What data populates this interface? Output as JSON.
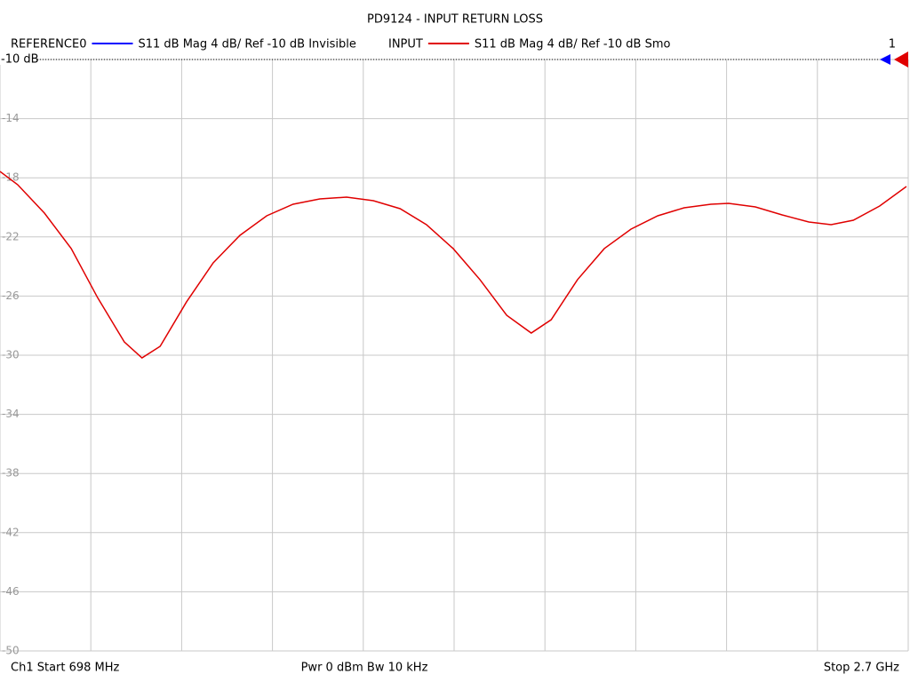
{
  "chart_data": {
    "type": "line",
    "title": "PD9124 - INPUT RETURN LOSS",
    "series": [
      {
        "name": "REFERENCE0",
        "color": "#0000ff",
        "info": "S11  dB Mag  4 dB/ Ref -10 dB  Invisible"
      },
      {
        "name": "INPUT",
        "color": "#e00000",
        "info": "S11  dB Mag  4 dB/ Ref -10 dB  Smo",
        "values": [
          -17.57,
          -18.47,
          -20.39,
          -22.79,
          -26.1,
          -29.1,
          -30.18,
          -29.4,
          -26.4,
          -23.75,
          -21.89,
          -20.57,
          -19.79,
          -19.43,
          -19.31,
          -19.55,
          -20.09,
          -21.17,
          -22.79,
          -24.89,
          -27.3,
          -28.5,
          -27.6,
          -24.89,
          -22.79,
          -21.47,
          -20.57,
          -20.03,
          -19.79,
          -19.73,
          -19.97,
          -20.51,
          -20.99,
          -21.17,
          -20.87,
          -19.91,
          -18.59
        ]
      }
    ],
    "x": [
      698,
      737,
      796,
      855,
      913,
      972,
      1011,
      1051,
      1109,
      1168,
      1227,
      1286,
      1344,
      1403,
      1462,
      1521,
      1580,
      1638,
      1697,
      1756,
      1815,
      1869,
      1913,
      1971,
      2030,
      2089,
      2148,
      2206,
      2265,
      2304,
      2363,
      2422,
      2481,
      2530,
      2579,
      2637,
      2696
    ],
    "xlim": [
      698,
      2700
    ],
    "x_divisions": 10,
    "ylim": [
      -10,
      -50
    ],
    "yticks": [
      -10,
      -14,
      -18,
      -22,
      -26,
      -30,
      -34,
      -38,
      -42,
      -46,
      -50
    ],
    "ref_label": "-10 dB",
    "channel_marker": "1",
    "footer": {
      "start": "Ch1  Start  698 MHz",
      "center": "Pwr  0 dBm  Bw  10 kHz",
      "stop": "Stop  2.7 GHz"
    },
    "grid": true
  }
}
